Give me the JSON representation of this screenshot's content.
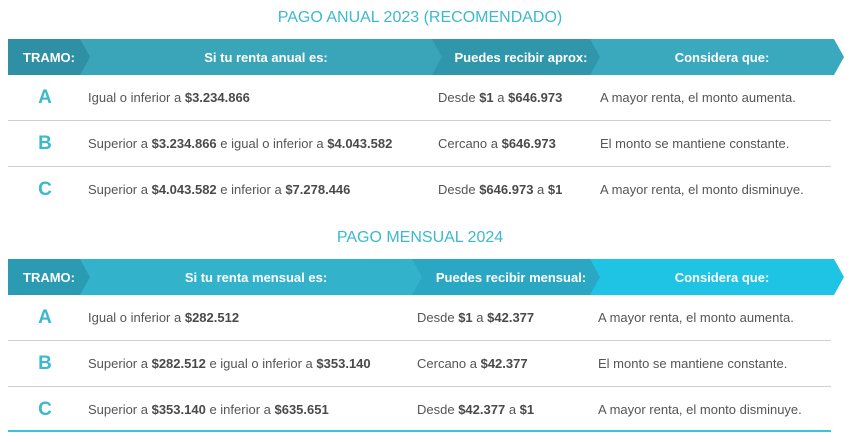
{
  "annual": {
    "title": "PAGO ANUAL 2023 (RECOMENDADO)",
    "headers": [
      "TRAMO:",
      "Si tu renta anual es:",
      "Puedes recibir aprox:",
      "Considera que:"
    ],
    "rows": [
      {
        "tramo": "A",
        "renta": [
          {
            "t": "Igual o inferior a "
          },
          {
            "t": "$3.234.866",
            "b": true
          }
        ],
        "recibir": [
          {
            "t": "Desde "
          },
          {
            "t": "$1",
            "b": true
          },
          {
            "t": " a "
          },
          {
            "t": "$646.973",
            "b": true
          }
        ],
        "considera": "A mayor renta, el monto aumenta."
      },
      {
        "tramo": "B",
        "renta": [
          {
            "t": "Superior a "
          },
          {
            "t": "$3.234.866",
            "b": true
          },
          {
            "t": " e igual o inferior a "
          },
          {
            "t": "$4.043.582",
            "b": true
          }
        ],
        "recibir": [
          {
            "t": "Cercano a "
          },
          {
            "t": "$646.973",
            "b": true
          }
        ],
        "considera": "El monto se mantiene constante."
      },
      {
        "tramo": "C",
        "renta": [
          {
            "t": "Superior a "
          },
          {
            "t": "$4.043.582",
            "b": true
          },
          {
            "t": " e inferior a "
          },
          {
            "t": "$7.278.446",
            "b": true
          }
        ],
        "recibir": [
          {
            "t": "Desde "
          },
          {
            "t": "$646.973",
            "b": true
          },
          {
            "t": " a "
          },
          {
            "t": "$1",
            "b": true
          }
        ],
        "considera": "A mayor renta, el monto disminuye."
      }
    ]
  },
  "monthly": {
    "title": "PAGO MENSUAL 2024",
    "headers": [
      "TRAMO:",
      "Si tu renta mensual es:",
      "Puedes recibir mensual:",
      "Considera que:"
    ],
    "rows": [
      {
        "tramo": "A",
        "renta": [
          {
            "t": "Igual o inferior a "
          },
          {
            "t": "$282.512",
            "b": true
          }
        ],
        "recibir": [
          {
            "t": "Desde "
          },
          {
            "t": "$1",
            "b": true
          },
          {
            "t": " a "
          },
          {
            "t": "$42.377",
            "b": true
          }
        ],
        "considera": "A mayor renta, el monto aumenta."
      },
      {
        "tramo": "B",
        "renta": [
          {
            "t": "Superior a "
          },
          {
            "t": "$282.512",
            "b": true
          },
          {
            "t": " e igual o inferior a "
          },
          {
            "t": "$353.140",
            "b": true
          }
        ],
        "recibir": [
          {
            "t": "Cercano a "
          },
          {
            "t": "$42.377",
            "b": true
          }
        ],
        "considera": "El monto se mantiene constante."
      },
      {
        "tramo": "C",
        "renta": [
          {
            "t": "Superior a "
          },
          {
            "t": "$353.140",
            "b": true
          },
          {
            "t": " e inferior a "
          },
          {
            "t": "$635.651",
            "b": true
          }
        ],
        "recibir": [
          {
            "t": "Desde "
          },
          {
            "t": "$42.377",
            "b": true
          },
          {
            "t": " a "
          },
          {
            "t": "$1",
            "b": true
          }
        ],
        "considera": "A mayor renta, el monto disminuye."
      }
    ]
  }
}
